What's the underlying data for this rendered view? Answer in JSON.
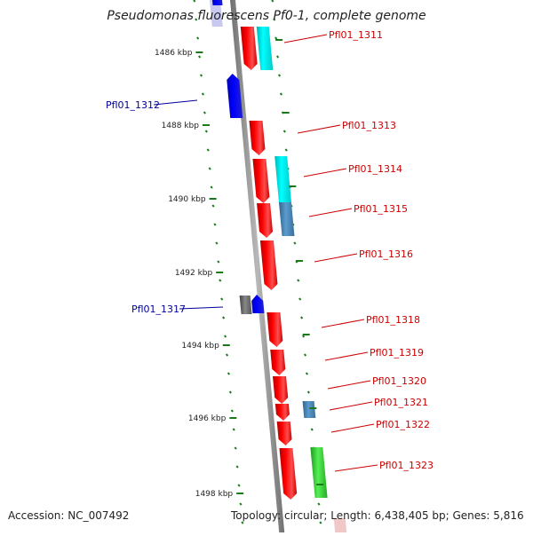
{
  "title": "Pseudomonas fluorescens Pf0-1, complete genome",
  "accession_label": "Accession: NC_007492",
  "topology_label": "Topology: circular; Length: 6,438,405 bp; Genes: 5,816",
  "kbp_labels": [
    "1486 kbp",
    "1488 kbp",
    "1490 kbp",
    "1492 kbp",
    "1494 kbp",
    "1496 kbp",
    "1498 kbp"
  ],
  "genes": [
    {
      "label": "Pfl01_1311",
      "strand": "forward",
      "color": "#cc0000"
    },
    {
      "label": "Pfl01_1312",
      "strand": "reverse",
      "color": "#000099"
    },
    {
      "label": "Pfl01_1313",
      "strand": "forward",
      "color": "#cc0000"
    },
    {
      "label": "Pfl01_1314",
      "strand": "forward",
      "color": "#cc0000"
    },
    {
      "label": "Pfl01_1315",
      "strand": "forward",
      "color": "#cc0000"
    },
    {
      "label": "Pfl01_1316",
      "strand": "forward",
      "color": "#cc0000"
    },
    {
      "label": "Pfl01_1317",
      "strand": "reverse",
      "color": "#000099"
    },
    {
      "label": "Pfl01_1318",
      "strand": "forward",
      "color": "#cc0000"
    },
    {
      "label": "Pfl01_1319",
      "strand": "forward",
      "color": "#cc0000"
    },
    {
      "label": "Pfl01_1320",
      "strand": "forward",
      "color": "#cc0000"
    },
    {
      "label": "Pfl01_1321",
      "strand": "forward",
      "color": "#cc0000"
    },
    {
      "label": "Pfl01_1322",
      "strand": "forward",
      "color": "#cc0000"
    },
    {
      "label": "Pfl01_1323",
      "strand": "forward",
      "color": "#cc0000"
    }
  ],
  "colors": {
    "forward_gene": "#ff0000",
    "reverse_gene": "#0000ff",
    "cyan_feature": "#00e5e5",
    "steel_feature": "#4682b4",
    "green_feature": "#33cc33",
    "gray_feature": "#666666",
    "backbone": "#808080",
    "tick_dots": "#1a7a1a"
  }
}
